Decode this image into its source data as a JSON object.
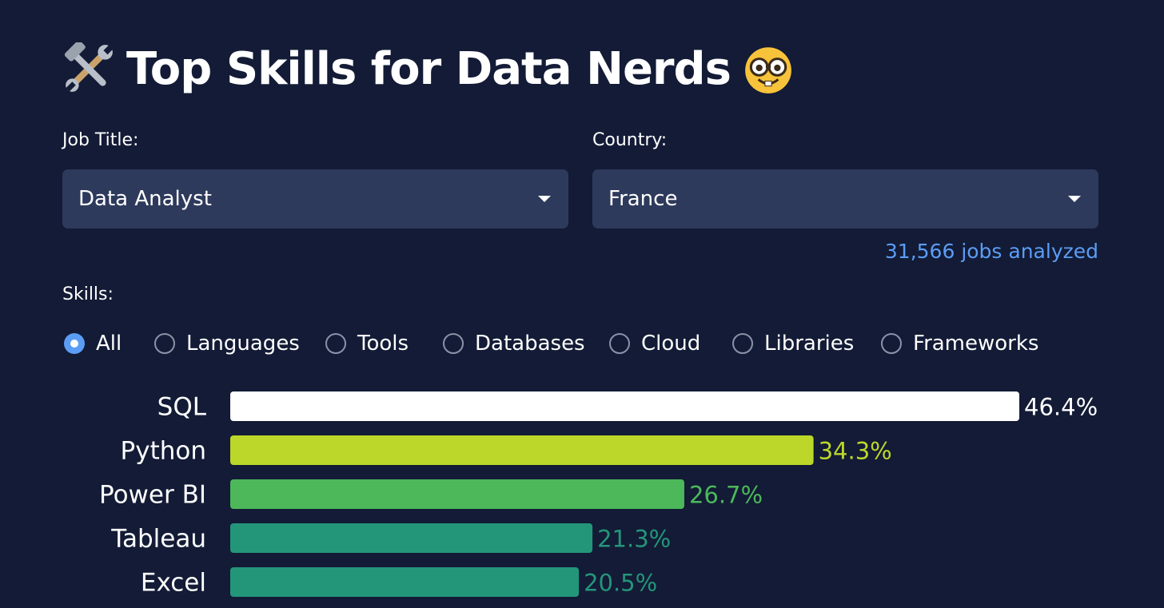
{
  "header": {
    "title": "Top Skills for Data Nerds",
    "leading_icon": "hammer-and-wrench-icon",
    "trailing_icon": "nerd-face-icon"
  },
  "filters": {
    "job_title_label": "Job Title:",
    "job_title_value": "Data Analyst",
    "country_label": "Country:",
    "country_value": "France",
    "jobs_analyzed": "31,566 jobs analyzed"
  },
  "skills": {
    "label": "Skills:",
    "selected": "All",
    "options": [
      "All",
      "Languages",
      "Tools",
      "Databases",
      "Cloud",
      "Libraries",
      "Frameworks"
    ]
  },
  "colors": {
    "background": "#131b36",
    "select_bg": "#2e3a5c",
    "accent": "#5b9df5"
  },
  "chart_data": {
    "type": "bar",
    "orientation": "horizontal",
    "categories": [
      "SQL",
      "Python",
      "Power BI",
      "Tableau",
      "Excel"
    ],
    "values": [
      46.4,
      34.3,
      26.7,
      21.3,
      20.5
    ],
    "value_labels": [
      "46.4%",
      "34.3%",
      "26.7%",
      "21.3%",
      "20.5%"
    ],
    "bar_colors": [
      "#ffffff",
      "#bcd72a",
      "#4cb85a",
      "#23967a",
      "#23967a"
    ],
    "xlim": [
      0,
      46.4
    ],
    "grid": false
  }
}
